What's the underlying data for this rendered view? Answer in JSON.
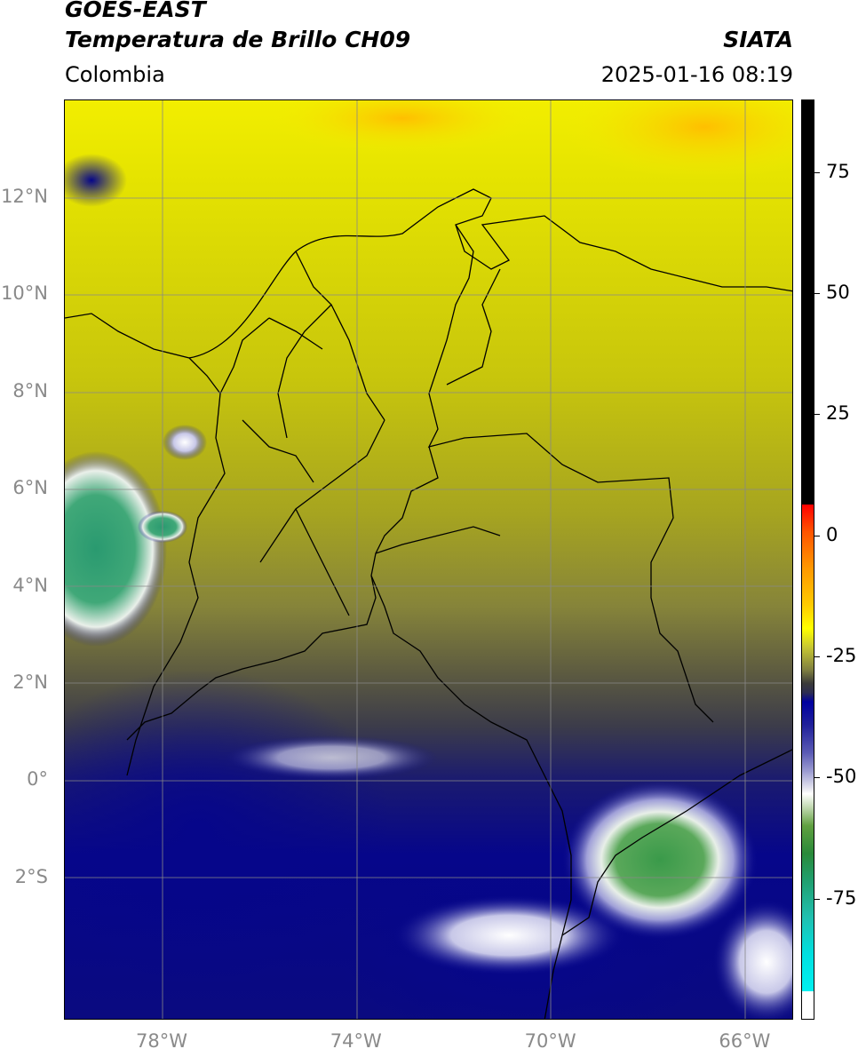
{
  "header": {
    "satellite": "GOES-EAST",
    "product": "Temperatura de Brillo CH09",
    "organization": "SIATA",
    "region": "Colombia",
    "timestamp": "2025-01-16 08:19"
  },
  "map": {
    "lat_labels": [
      {
        "text": "12°N",
        "lat": 12
      },
      {
        "text": "10°N",
        "lat": 10
      },
      {
        "text": "8°N",
        "lat": 8
      },
      {
        "text": "6°N",
        "lat": 6
      },
      {
        "text": "4°N",
        "lat": 4
      },
      {
        "text": "2°N",
        "lat": 2
      },
      {
        "text": "0°",
        "lat": 0
      },
      {
        "text": "2°S",
        "lat": -2
      }
    ],
    "lon_labels": [
      {
        "text": "78°W",
        "lon": -78
      },
      {
        "text": "74°W",
        "lon": -74
      },
      {
        "text": "70°W",
        "lon": -70
      },
      {
        "text": "66°W",
        "lon": -66
      }
    ],
    "colors": {
      "warm": "#e0e000",
      "mid": "#8a8a3a",
      "cold": "#00007a",
      "coldest": "#2a9a5a"
    }
  },
  "colorbar": {
    "labels": [
      {
        "text": "75",
        "value": 75
      },
      {
        "text": "50",
        "value": 50
      },
      {
        "text": "25",
        "value": 25
      },
      {
        "text": "0",
        "value": 0
      },
      {
        "text": "-25",
        "value": -25
      },
      {
        "text": "-50",
        "value": -50
      },
      {
        "text": "-75",
        "value": -75
      }
    ]
  }
}
